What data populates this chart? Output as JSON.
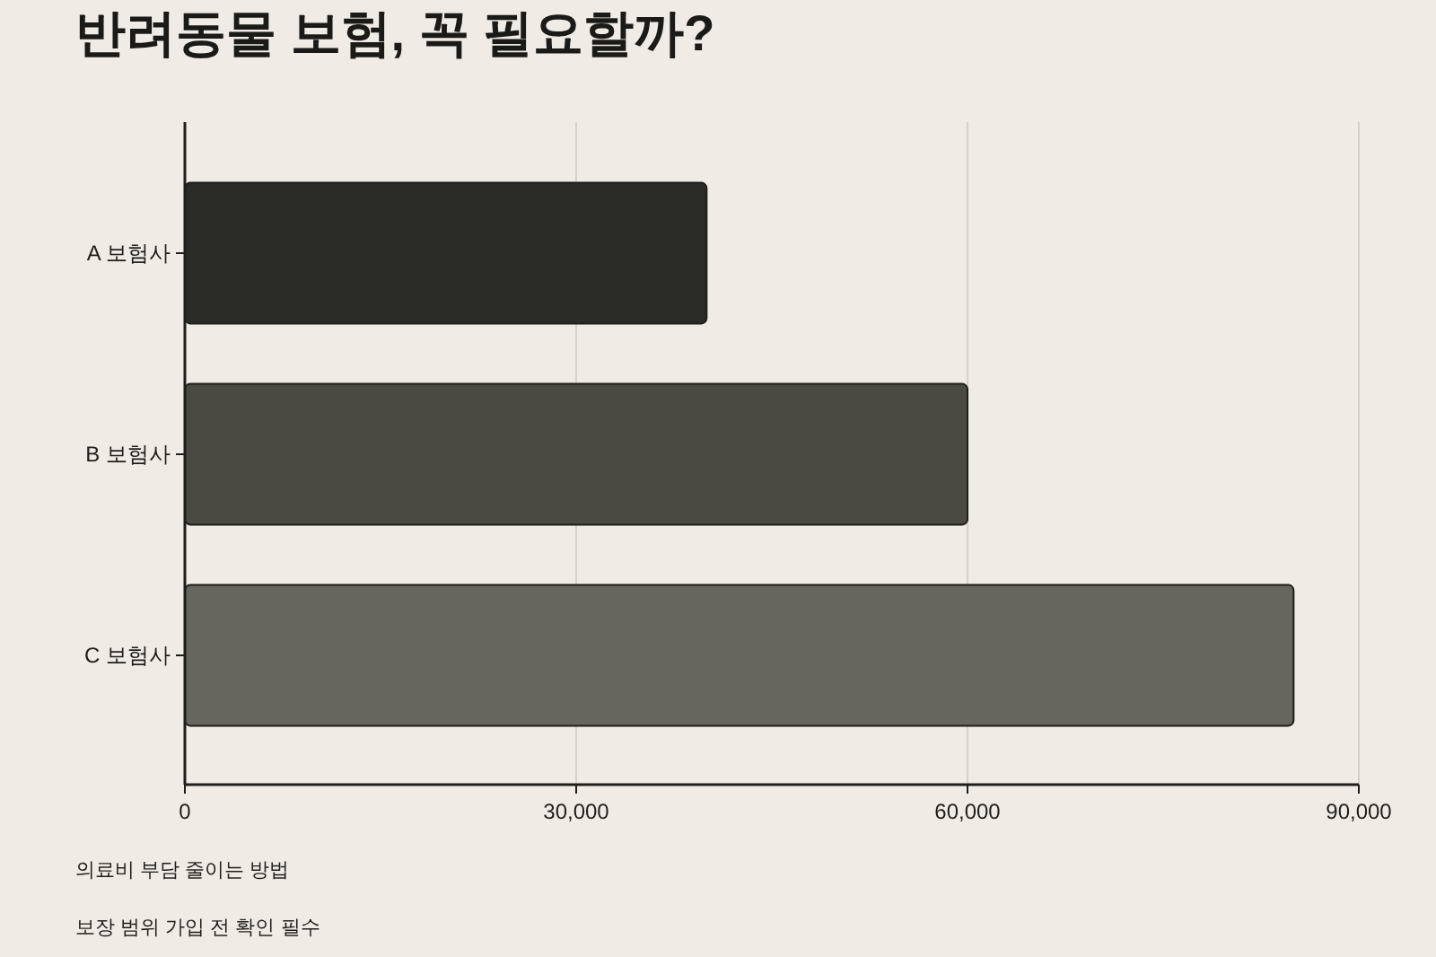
{
  "chart_data": {
    "type": "bar",
    "orientation": "horizontal",
    "title": "반려동물 보험, 꼭 필요할까?",
    "categories": [
      "A 보험사",
      "B 보험사",
      "C 보험사"
    ],
    "values": [
      40000,
      60000,
      85000
    ],
    "colors": [
      "#2b2b26",
      "#4a4a42",
      "#67665e"
    ],
    "xlim": [
      0,
      90000
    ],
    "xticks": [
      {
        "value": 0,
        "label": "0"
      },
      {
        "value": 30000,
        "label": "30,000"
      },
      {
        "value": 60000,
        "label": "60,000"
      },
      {
        "value": 90000,
        "label": "90,000"
      }
    ],
    "grid": "x",
    "annotations": [
      "의료비 부담 줄이는 방법",
      "보장 범위 가입 전 확인 필수"
    ]
  }
}
